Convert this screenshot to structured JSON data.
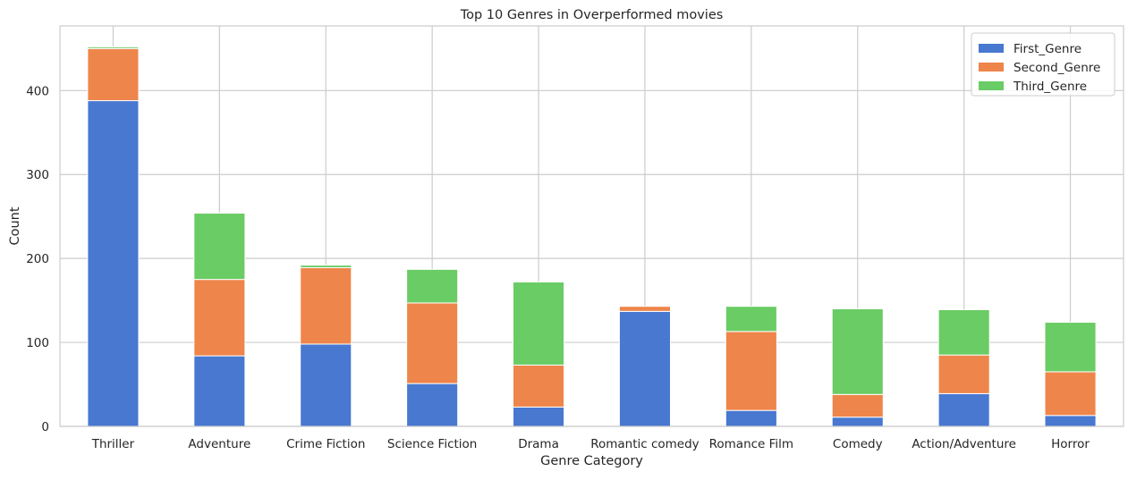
{
  "chart_data": {
    "type": "bar",
    "stacked": true,
    "title": "Top 10 Genres in Overperformed movies",
    "xlabel": "Genre Category",
    "ylabel": "Count",
    "ylim": [
      0,
      477
    ],
    "yticks": [
      0,
      100,
      200,
      300,
      400
    ],
    "grid": true,
    "legend_position": "top-right",
    "categories": [
      "Thriller",
      "Adventure",
      "Crime Fiction",
      "Science Fiction",
      "Drama",
      "Romantic comedy",
      "Romance Film",
      "Comedy",
      "Action/Adventure",
      "Horror"
    ],
    "series": [
      {
        "name": "First_Genre",
        "color": "#4878d0",
        "values": [
          388,
          84,
          98,
          51,
          23,
          137,
          19,
          11,
          39,
          13
        ]
      },
      {
        "name": "Second_Genre",
        "color": "#ee854a",
        "values": [
          62,
          91,
          91,
          96,
          50,
          6,
          94,
          27,
          46,
          52
        ]
      },
      {
        "name": "Third_Genre",
        "color": "#6acc64",
        "values": [
          2,
          79,
          3,
          40,
          99,
          0,
          30,
          102,
          54,
          59
        ]
      }
    ]
  }
}
